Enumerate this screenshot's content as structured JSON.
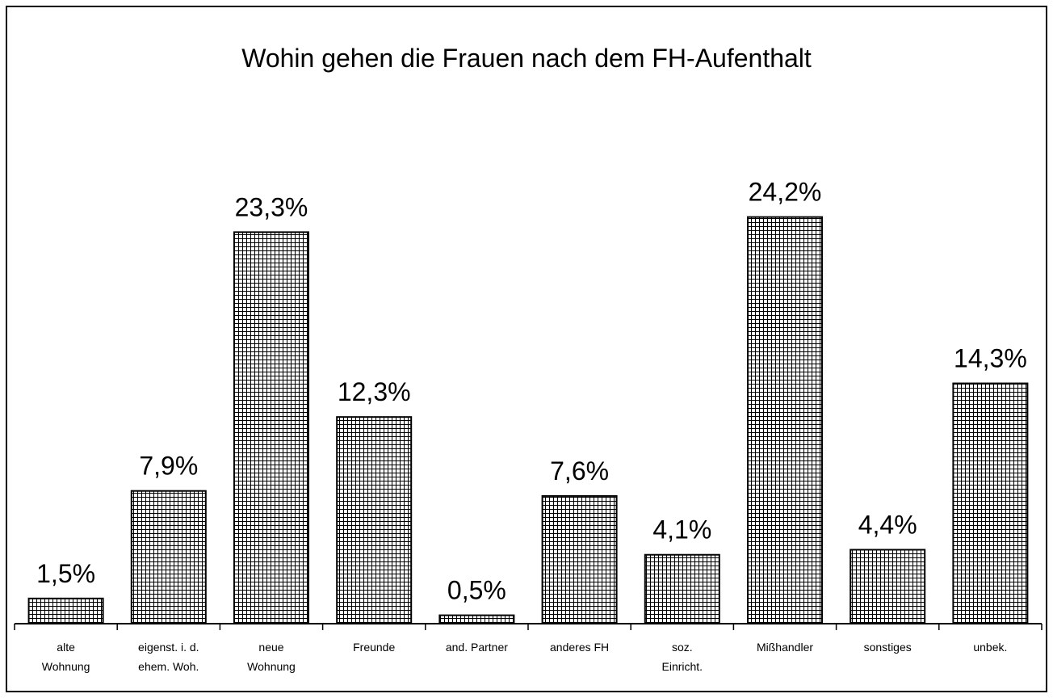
{
  "chart_data": {
    "type": "bar",
    "title": "Wohin gehen die Frauen nach dem FH-Aufenthalt",
    "categories": [
      "alte\nWohnung",
      "eigenst. i. d.\nehem. Woh.",
      "neue\nWohnung",
      "Freunde",
      "and. Partner",
      "anderes FH",
      "soz.\nEinricht.",
      "Mißhandler",
      "sonstiges",
      "unbek."
    ],
    "values": [
      1.5,
      7.9,
      23.3,
      12.3,
      0.5,
      7.6,
      4.1,
      24.2,
      4.4,
      14.3
    ],
    "value_labels": [
      "1,5%",
      "7,9%",
      "23,3%",
      "12,3%",
      "0,5%",
      "7,6%",
      "4,1%",
      "24,2%",
      "4,4%",
      "14,3%"
    ],
    "color": "#000000"
  }
}
